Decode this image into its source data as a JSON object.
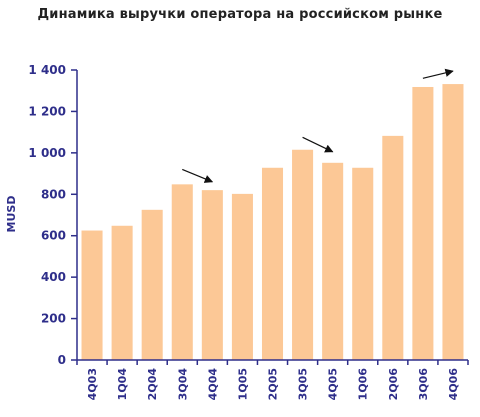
{
  "chart_data": {
    "type": "bar",
    "title": "Динамика выручки оператора на российском рынке",
    "ylabel": "MUSD",
    "xlabel": "",
    "ylim": [
      0,
      1400
    ],
    "yticks": [
      0,
      200,
      400,
      600,
      800,
      1000,
      1200,
      1400
    ],
    "ytick_labels": [
      "0",
      "200",
      "400",
      "600",
      "800",
      "1 000",
      "1 200",
      "1 400"
    ],
    "categories": [
      "4Q03",
      "1Q04",
      "2Q04",
      "3Q04",
      "4Q04",
      "1Q05",
      "2Q05",
      "3Q05",
      "4Q05",
      "1Q06",
      "2Q06",
      "3Q06",
      "4Q06"
    ],
    "values": [
      625,
      648,
      725,
      848,
      820,
      802,
      928,
      1015,
      952,
      928,
      1082,
      1318,
      1332
    ],
    "grid": false,
    "bar_color": "#fcc896",
    "axis_color": "#2e2e8a",
    "annotations": [
      {
        "type": "arrow",
        "from": {
          "category": "3Q04",
          "value": 920
        },
        "to": {
          "category": "4Q04",
          "value": 860
        }
      },
      {
        "type": "arrow",
        "from": {
          "category": "3Q05",
          "value": 1075
        },
        "to": {
          "category": "4Q05",
          "value": 1005
        }
      },
      {
        "type": "arrow",
        "from": {
          "category": "3Q06",
          "value": 1360
        },
        "to": {
          "category": "4Q06",
          "value": 1395
        }
      }
    ]
  }
}
